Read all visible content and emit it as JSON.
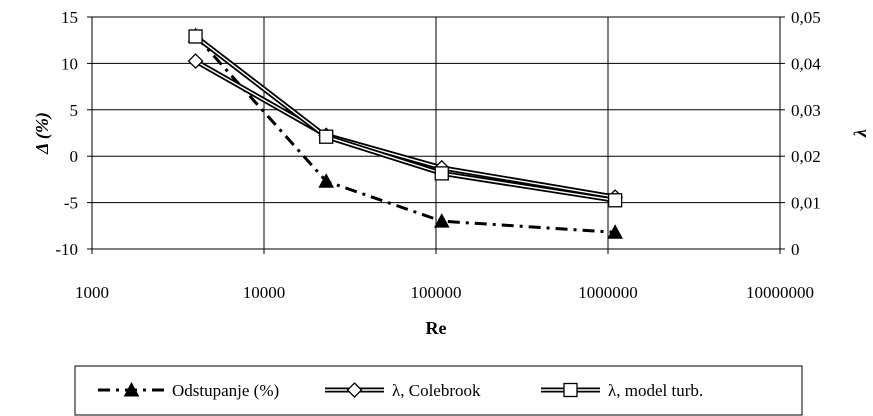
{
  "chart_data": {
    "type": "line",
    "xscale": "log",
    "xlabel": "Re",
    "ylabel": "Δ (%)",
    "y2label": "λ",
    "xlim": [
      1000,
      10000000
    ],
    "ylim": [
      -10,
      15
    ],
    "y2lim": [
      0,
      0.05
    ],
    "grid": true,
    "legend_position": "bottom",
    "x_tick_labels": [
      "1000",
      "10000",
      "100000",
      "1000000",
      "10000000"
    ],
    "y_tick_labels": [
      "-10",
      "-5",
      "0",
      "5",
      "10",
      "15"
    ],
    "y2_tick_labels": [
      "0",
      "0,01",
      "0,02",
      "0,03",
      "0,04",
      "0,05"
    ],
    "series": [
      {
        "name": "Odstupanje (%)",
        "axis": "left",
        "marker": "triangle",
        "line_style": "dashdot",
        "x": [
          4000,
          23000,
          108000,
          1100000
        ],
        "values": [
          13.0,
          -2.7,
          -7.0,
          -8.2
        ]
      },
      {
        "name": "λ, Colebrook",
        "axis": "right",
        "marker": "diamond",
        "line_style": "double",
        "x": [
          4000,
          23000,
          108000,
          1100000
        ],
        "values": [
          0.0405,
          0.0245,
          0.0175,
          0.0112
        ]
      },
      {
        "name": "λ, model turb.",
        "axis": "right",
        "marker": "square",
        "line_style": "double",
        "x": [
          4000,
          23000,
          108000,
          1100000
        ],
        "values": [
          0.0458,
          0.0242,
          0.0163,
          0.0105
        ]
      }
    ]
  }
}
